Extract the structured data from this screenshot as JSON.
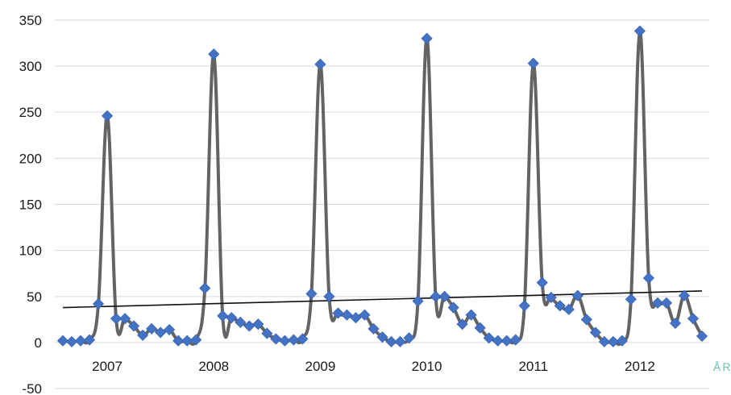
{
  "chart_data": {
    "type": "line",
    "title": "",
    "xlabel": "ÅR",
    "ylabel": "",
    "ylim": [
      -50,
      350
    ],
    "yticks": [
      -50,
      0,
      50,
      100,
      150,
      200,
      250,
      300,
      350
    ],
    "year_labels": [
      "2007",
      "2008",
      "2009",
      "2010",
      "2011",
      "2012"
    ],
    "x_unit": "month index (0 = first monthly point, 12 points per year)",
    "series": [
      {
        "values": [
          2,
          1,
          2,
          3,
          42,
          246,
          26,
          26,
          18,
          8,
          15,
          11,
          14,
          2,
          2,
          3,
          59,
          313,
          29,
          27,
          22,
          18,
          20,
          10,
          4,
          2,
          3,
          4,
          53,
          302,
          50,
          32,
          30,
          27,
          30,
          15,
          6,
          1,
          1,
          5,
          45,
          330,
          50,
          50,
          38,
          20,
          30,
          16,
          5,
          2,
          2,
          3,
          40,
          303,
          65,
          49,
          40,
          36,
          51,
          25,
          11,
          1,
          1,
          2,
          47,
          338,
          70,
          43,
          43,
          21,
          51,
          26,
          7
        ]
      }
    ],
    "trendline": {
      "start": 38,
      "end": 56
    },
    "colors": {
      "line": "#636363",
      "marker": "#4472c4",
      "trend": "#111111",
      "grid": "#d9d9d9",
      "axis_title": "#66c2b4"
    }
  }
}
